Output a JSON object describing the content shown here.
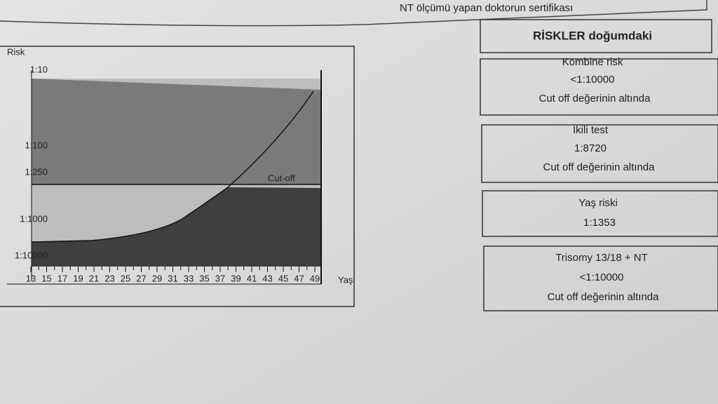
{
  "header": {
    "certificate": "NT ölçümü yapan doktorun sertifikası"
  },
  "chart": {
    "y_axis_label": "Risk",
    "x_axis_label": "Yaş",
    "cutoff_label": "Cut-off",
    "yticks": [
      "1:10",
      "1:100",
      "1:250",
      "1:1000",
      "1:10000"
    ],
    "xticks": [
      13,
      15,
      17,
      19,
      21,
      23,
      25,
      27,
      29,
      31,
      33,
      35,
      37,
      39,
      41,
      43,
      45,
      47,
      49
    ]
  },
  "risks": {
    "title": "RİSKLER doğumdaki",
    "boxes": [
      {
        "title": "Kombine risk",
        "value": "<1:10000",
        "note": "Cut off değerinin altında"
      },
      {
        "title": "İkili test",
        "value": "1:8720",
        "note": "Cut off değerinin altında"
      },
      {
        "title": "Yaş riski",
        "value": "1:1353"
      },
      {
        "title": "Trisomy 13/18 + NT",
        "value": "<1:10000",
        "note": "Cut off değerinin altında"
      }
    ]
  }
}
